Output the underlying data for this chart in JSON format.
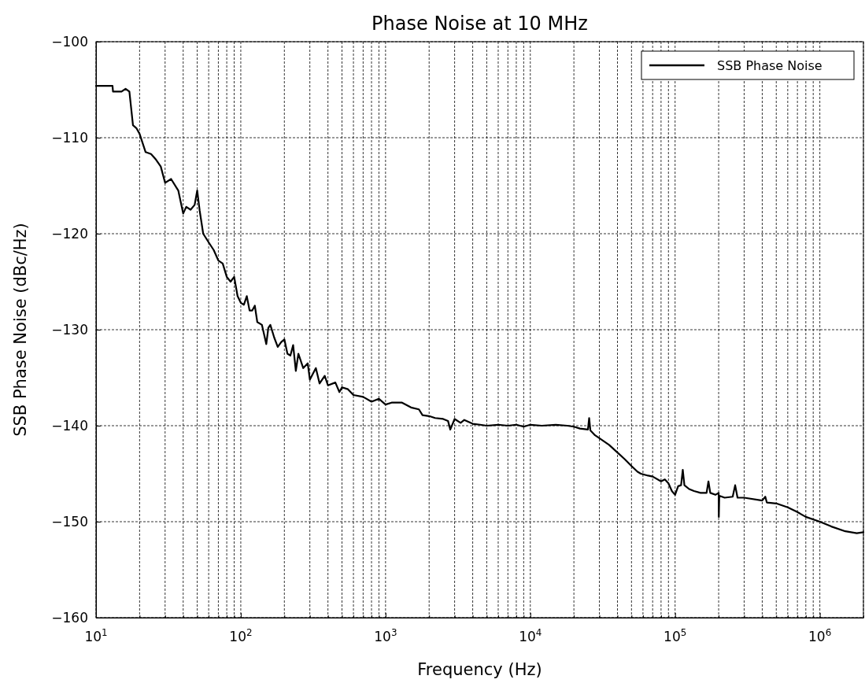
{
  "chart_data": {
    "type": "line",
    "title": "Phase Noise at 10 MHz",
    "xlabel": "Frequency (Hz)",
    "ylabel": "SSB Phase Noise (dBc/Hz)",
    "log": "x",
    "grid": true,
    "legend": "top right",
    "marker": "none",
    "line_style": "solid",
    "xlim": [
      10,
      2000000
    ],
    "ylim": [
      -160,
      -100
    ],
    "xticks": [
      {
        "value": 10,
        "label": "10$^{1}$"
      },
      {
        "value": 20,
        "label": null
      },
      {
        "value": 30,
        "label": null
      },
      {
        "value": 40,
        "label": null
      },
      {
        "value": 50,
        "label": null
      },
      {
        "value": 60,
        "label": null
      },
      {
        "value": 70,
        "label": null
      },
      {
        "value": 80,
        "label": null
      },
      {
        "value": 90,
        "label": null
      },
      {
        "value": 100,
        "label": "10$^{2}$"
      },
      {
        "value": 200,
        "label": null
      },
      {
        "value": 300,
        "label": null
      },
      {
        "value": 400,
        "label": null
      },
      {
        "value": 500,
        "label": null
      },
      {
        "value": 600,
        "label": null
      },
      {
        "value": 700,
        "label": null
      },
      {
        "value": 800,
        "label": null
      },
      {
        "value": 900,
        "label": null
      },
      {
        "value": 1000,
        "label": "10$^{3}$"
      },
      {
        "value": 2000,
        "label": null
      },
      {
        "value": 3000,
        "label": null
      },
      {
        "value": 4000,
        "label": null
      },
      {
        "value": 5000,
        "label": null
      },
      {
        "value": 6000,
        "label": null
      },
      {
        "value": 7000,
        "label": null
      },
      {
        "value": 8000,
        "label": null
      },
      {
        "value": 9000,
        "label": null
      },
      {
        "value": 10000,
        "label": "10$^{4}$"
      },
      {
        "value": 20000,
        "label": null
      },
      {
        "value": 30000,
        "label": null
      },
      {
        "value": 40000,
        "label": null
      },
      {
        "value": 50000,
        "label": null
      },
      {
        "value": 60000,
        "label": null
      },
      {
        "value": 70000,
        "label": null
      },
      {
        "value": 80000,
        "label": null
      },
      {
        "value": 90000,
        "label": null
      },
      {
        "value": 100000,
        "label": "10$^{5}$"
      },
      {
        "value": 200000,
        "label": null
      },
      {
        "value": 300000,
        "label": null
      },
      {
        "value": 400000,
        "label": null
      },
      {
        "value": 500000,
        "label": null
      },
      {
        "value": 600000,
        "label": null
      },
      {
        "value": 700000,
        "label": null
      },
      {
        "value": 800000,
        "label": null
      },
      {
        "value": 900000,
        "label": null
      },
      {
        "value": 1000000,
        "label": "10$^{6}$"
      },
      {
        "value": 2000000,
        "label": null
      }
    ],
    "yticks": [
      -160,
      -150,
      -140,
      -130,
      -120,
      -110,
      -100
    ],
    "series": [
      {
        "name": "SSB Phase Noise",
        "color": "#000000",
        "x": [
          10,
          13,
          13.1,
          15,
          16,
          17,
          18,
          19,
          20,
          22,
          24,
          26,
          28,
          30,
          33,
          37,
          40,
          42,
          45,
          48,
          50,
          52,
          55,
          60,
          65,
          70,
          75,
          80,
          85,
          90,
          95,
          100,
          105,
          110,
          115,
          120,
          125,
          130,
          140,
          150,
          155,
          160,
          170,
          180,
          190,
          200,
          210,
          220,
          230,
          240,
          250,
          270,
          290,
          300,
          330,
          350,
          380,
          400,
          450,
          480,
          500,
          550,
          600,
          700,
          800,
          900,
          1000,
          1100,
          1300,
          1500,
          1700,
          1800,
          2000,
          2200,
          2500,
          2700,
          2800,
          3000,
          3300,
          3500,
          4000,
          4500,
          5000,
          6000,
          7000,
          8000,
          9000,
          10000,
          12000,
          15000,
          18000,
          20000,
          22000,
          25000,
          25500,
          26000,
          28000,
          30000,
          35000,
          40000,
          45000,
          50000,
          55000,
          58000,
          65000,
          70000,
          80000,
          85000,
          90000,
          95000,
          100000,
          105000,
          110000,
          113000,
          116000,
          125000,
          135000,
          150000,
          165000,
          170000,
          175000,
          190000,
          200000,
          200500,
          202000,
          220000,
          250000,
          260000,
          270000,
          300000,
          400000,
          420000,
          430000,
          500000,
          600000,
          700000,
          800000,
          1000000,
          1200000,
          1500000,
          1800000,
          2000000
        ],
        "values": [
          -104.6,
          -104.6,
          -105.2,
          -105.2,
          -104.9,
          -105.2,
          -108.7,
          -109,
          -109.6,
          -111.5,
          -111.7,
          -112.3,
          -113,
          -114.7,
          -114.3,
          -115.5,
          -117.9,
          -117.2,
          -117.5,
          -117,
          -115.5,
          -117.6,
          -120,
          -120.9,
          -121.7,
          -122.8,
          -123.1,
          -124.5,
          -125,
          -124.5,
          -126.5,
          -127.2,
          -127.4,
          -126.5,
          -128,
          -128,
          -127.5,
          -129.2,
          -129.5,
          -131.5,
          -129.8,
          -129.5,
          -130.8,
          -131.8,
          -131.3,
          -131,
          -132.5,
          -132.7,
          -131.6,
          -134.3,
          -132.5,
          -134,
          -133.5,
          -135.2,
          -134,
          -135.6,
          -134.8,
          -135.8,
          -135.5,
          -136.5,
          -136,
          -136.2,
          -136.8,
          -137,
          -137.5,
          -137.2,
          -137.8,
          -137.6,
          -137.6,
          -138.1,
          -138.3,
          -138.9,
          -139,
          -139.2,
          -139.3,
          -139.5,
          -140.4,
          -139.3,
          -139.7,
          -139.4,
          -139.8,
          -139.9,
          -140,
          -139.9,
          -140,
          -139.9,
          -140.1,
          -139.9,
          -140,
          -139.9,
          -140,
          -140.1,
          -140.3,
          -140.4,
          -139.2,
          -140.5,
          -141,
          -141.3,
          -142,
          -142.8,
          -143.5,
          -144.2,
          -144.8,
          -145,
          -145.2,
          -145.3,
          -145.8,
          -145.6,
          -146,
          -146.8,
          -147.2,
          -146.3,
          -146.2,
          -144.6,
          -146.2,
          -146.6,
          -146.8,
          -147,
          -147,
          -145.8,
          -147,
          -147.2,
          -147,
          -149.5,
          -147.3,
          -147.5,
          -147.4,
          -146.2,
          -147.5,
          -147.5,
          -147.8,
          -147.4,
          -148,
          -148.1,
          -148.5,
          -149,
          -149.5,
          -150,
          -150.5,
          -151,
          -151.2,
          -151.1
        ]
      }
    ]
  }
}
